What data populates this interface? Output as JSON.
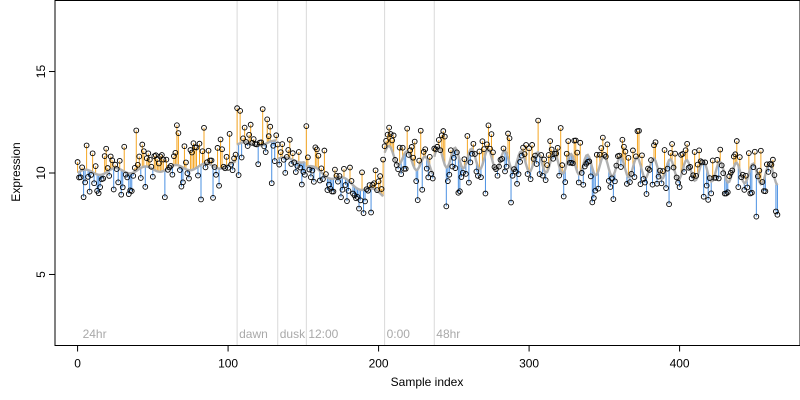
{
  "chart_data": {
    "type": "scatter",
    "xlabel": "Sample index",
    "ylabel": "Expression",
    "xlim": [
      -15,
      480
    ],
    "ylim": [
      1.5,
      18.5
    ],
    "x_ticks": [
      0,
      100,
      200,
      300,
      400
    ],
    "y_ticks": [
      5,
      10,
      15
    ],
    "grid": false,
    "colors": {
      "above": "#f5a623",
      "below": "#4a90e2",
      "trend": "#b0b0b0",
      "point_stroke": "#000000",
      "annotation": "#a9a9a9",
      "vline": "#d9d9d9"
    },
    "annotations": [
      {
        "x": 2,
        "label": "24hr"
      },
      {
        "x": 106,
        "label": "dawn"
      },
      {
        "x": 133,
        "label": "dusk"
      },
      {
        "x": 152,
        "label": "12:00"
      },
      {
        "x": 204,
        "label": "0:00"
      },
      {
        "x": 237,
        "label": "48hr"
      }
    ],
    "vlines": [
      106,
      133,
      152,
      204,
      237
    ],
    "segments": [
      {
        "x": [
          0,
          105
        ],
        "y": [
          10.0,
          10.4
        ],
        "amp": 0.15,
        "period": 20
      },
      {
        "x": [
          106,
          132
        ],
        "y": [
          11.4,
          11.5
        ],
        "amp": 0.1,
        "period": 20
      },
      {
        "x": [
          133,
          151
        ],
        "y": [
          10.7,
          10.6
        ],
        "amp": 0.1,
        "period": 20
      },
      {
        "x": [
          152,
          203
        ],
        "y": [
          10.3,
          8.9
        ],
        "amp": 0.15,
        "period": 20
      },
      {
        "x": [
          204,
          236
        ],
        "y": [
          11.0,
          10.3
        ],
        "amp": 0.4,
        "period": 12
      },
      {
        "x": [
          237,
          465
        ],
        "y": [
          10.8,
          9.9
        ],
        "amp": 0.5,
        "period": 11
      }
    ],
    "point_count": 466,
    "noise_sd": 0.75,
    "seed": 17
  }
}
